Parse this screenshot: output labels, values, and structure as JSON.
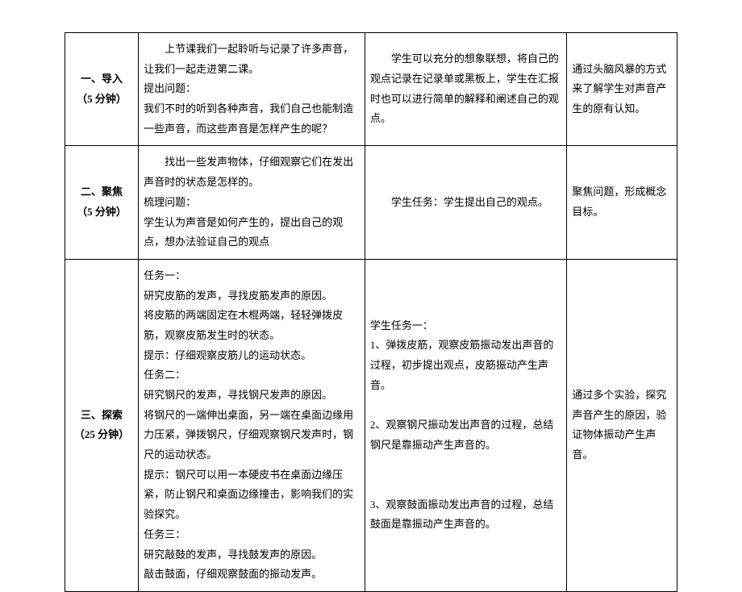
{
  "rows": [
    {
      "stage_title": "一、导入",
      "stage_time": "（5 分钟）",
      "col2_html": "<p class='para indent'>上节课我们一起聆听与记录了许多声音，让我们一起走进第二课。</p><p class='para'>提出问题：</p><p class='para'>我们不时的听到各种声音，我们自己也能制造一些声音，而这些声音是怎样产生的呢？</p>",
      "col3_html": "<p class='para indent'>学生可以充分的想象联想，将自己的观点记录在记录单或黑板上，学生在汇报时也可以进行简单的解释和阐述自己的观点。</p>",
      "col4_html": "<p class='para'>通过头脑风暴的方式来了解学生对声音产生的原有认知。</p>"
    },
    {
      "stage_title": "二、聚焦",
      "stage_time": "（5 分钟）",
      "col2_html": "<p class='para indent'>找出一些发声物体，仔细观察它们在发出声音时的状态是怎样的。</p><p class='para'>梳理问题：</p><p class='para'>学生认为声音是如何产生的，提出自己的观点，想办法验证自己的观点</p>",
      "col3_html": "<p class='para indent'>学生任务：学生提出自己的观点。</p>",
      "col4_html": "<p class='para'>聚焦问题，形成概念目标。</p>"
    },
    {
      "stage_title": "三、探索",
      "stage_time": "（25 分钟）",
      "col2_html": "<p class='para'>任务一：</p><p class='para'>研究皮筋的发声，寻找皮筋发声的原因。</p><p class='para'>将皮筋的两端固定在木棍两端，轻轻弹拨皮筋，观察皮筋发生时的状态。</p><p class='para'>提示：仔细观察皮筋儿的运动状态。</p><p class='para'>任务二：</p><p class='para'>研究钢尺的发声，寻找钢尺发声的原因。</p><p class='para'>将钢尺的一端伸出桌面，另一端在桌面边缘用力压紧，弹拨钢尺，仔细观察钢尺发声时，钢尺的运动状态。</p><p class='para'>提示：钢尺可以用一本硬皮书在桌面边缘压紧，防止钢尺和桌面边缘撞击，影响我们的实验探究。</p><p class='para'>任务三：</p><p class='para'>研究敲鼓的发声，寻找鼓发声的原因。</p><p class='para'>敲击鼓面，仔细观察鼓面的振动发声。</p>",
      "col3_html": "<p class='para'>学生任务一：</p><p class='para'>1、弹拨皮筋，观察皮筋振动发出声音的过程，初步提出观点，皮筋振动产生声音。</p><p class='para'>&nbsp;</p><p class='para'>2、观察钢尺振动发出声音的过程，总结钢尺是靠振动产生声音的。</p><p class='para'>&nbsp;</p><p class='para'>&nbsp;</p><p class='para'>3、观察鼓面振动发出声音的过程，总结鼓面是靠振动产生声音的。</p>",
      "col4_html": "<p class='para'>通过多个实验，探究声音产生的原因，验证物体振动产生声音。</p>"
    }
  ]
}
